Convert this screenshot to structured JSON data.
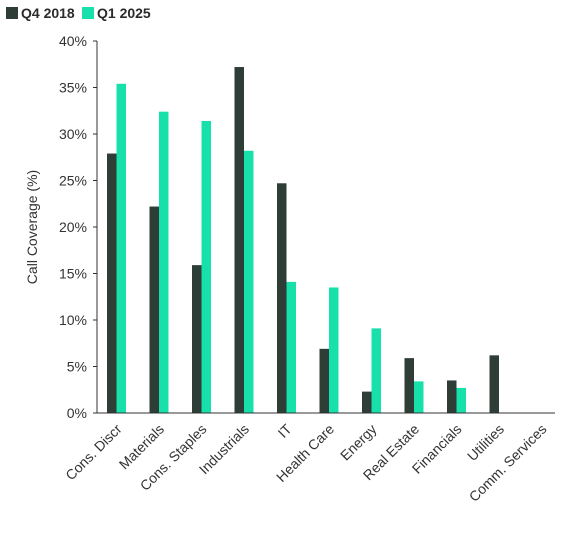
{
  "chart_data": {
    "type": "bar",
    "categories": [
      "Cons. Discr",
      "Materials",
      "Cons. Staples",
      "Industrials",
      "IT",
      "Health Care",
      "Energy",
      "Real Estate",
      "Financials",
      "Utilities",
      "Comm. Services"
    ],
    "series": [
      {
        "name": "Q4 2018",
        "color": "#2e3d35",
        "values": [
          27.9,
          22.2,
          15.9,
          37.2,
          24.7,
          6.9,
          2.3,
          5.9,
          3.5,
          6.2,
          0
        ]
      },
      {
        "name": "Q1 2025",
        "color": "#17e0ab",
        "values": [
          35.4,
          32.4,
          31.4,
          28.2,
          14.1,
          13.5,
          9.1,
          3.4,
          2.7,
          0,
          0
        ]
      }
    ],
    "xlabel": "",
    "ylabel": "Call Coverage (%)",
    "ylim": [
      0,
      40
    ],
    "yticks": [
      "0%",
      "5%",
      "10%",
      "15%",
      "20%",
      "25%",
      "30%",
      "35%",
      "40%"
    ],
    "grid": false,
    "legend_position": "top-left"
  }
}
